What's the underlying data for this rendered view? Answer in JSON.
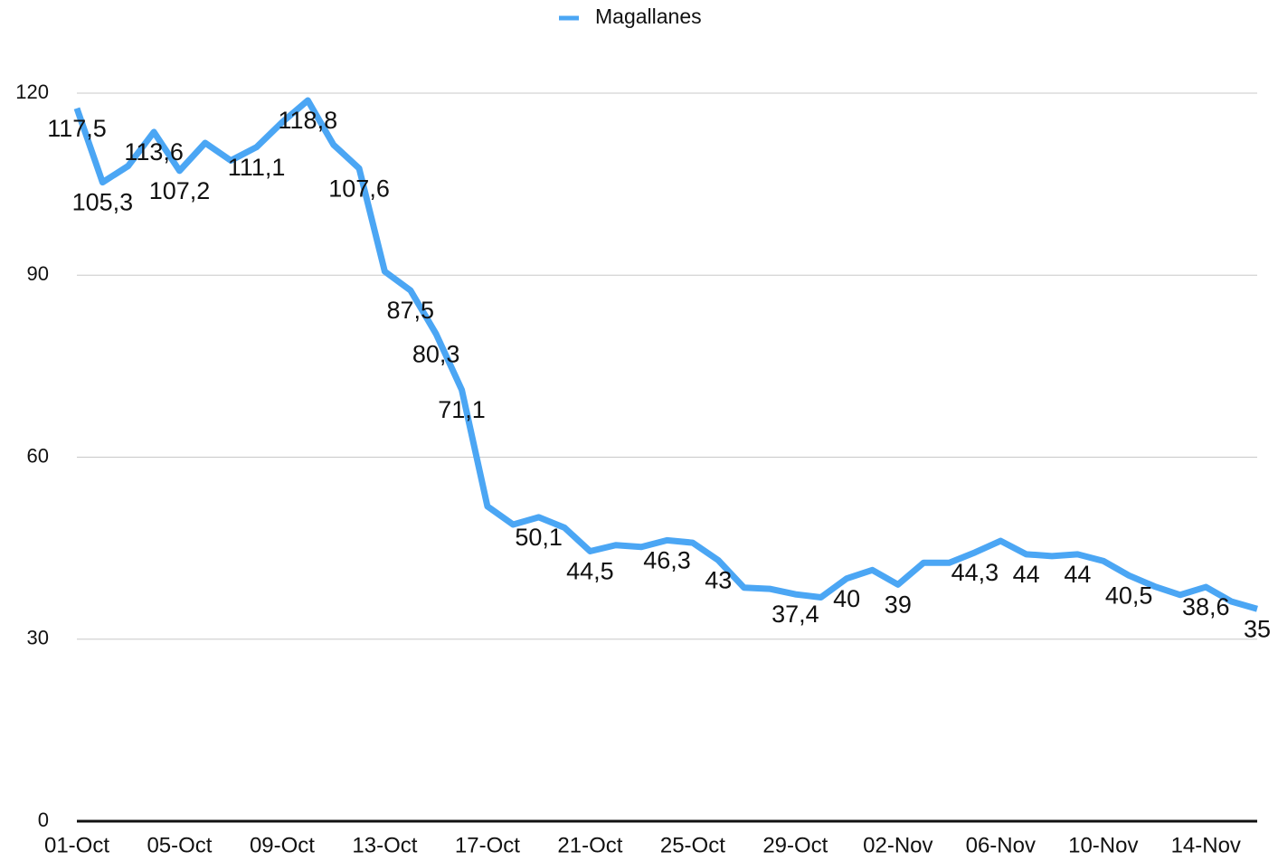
{
  "chart_data": {
    "type": "line",
    "categories": [
      "01-Oct",
      null,
      null,
      null,
      "05-Oct",
      null,
      null,
      null,
      "09-Oct",
      null,
      null,
      null,
      "13-Oct",
      null,
      null,
      null,
      "17-Oct",
      null,
      null,
      null,
      "21-Oct",
      null,
      null,
      null,
      "25-Oct",
      null,
      null,
      null,
      "29-Oct",
      null,
      null,
      null,
      "02-Nov",
      null,
      null,
      null,
      "06-Nov",
      null,
      null,
      null,
      "10-Nov",
      null,
      null,
      null,
      "14-Nov",
      null,
      null
    ],
    "series": [
      {
        "name": "Magallanes",
        "color": "#4ba6f4",
        "values": [
          117.5,
          105.3,
          108.0,
          113.6,
          107.2,
          111.8,
          108.9,
          111.1,
          115.2,
          118.8,
          111.5,
          107.6,
          90.6,
          87.5,
          80.3,
          71.1,
          51.9,
          48.9,
          50.1,
          48.4,
          44.5,
          45.5,
          45.2,
          46.3,
          45.9,
          43,
          38.5,
          38.3,
          37.4,
          36.9,
          40,
          41.4,
          39,
          42.6,
          42.6,
          44.3,
          46.2,
          44,
          43.7,
          44,
          42.9,
          40.5,
          38.7,
          37.3,
          38.6,
          36.2,
          35
        ],
        "value_labels": [
          "117,5",
          "105,3",
          null,
          "113,6",
          "107,2",
          null,
          null,
          "111,1",
          null,
          "118,8",
          null,
          "107,6",
          null,
          "87,5",
          "80,3",
          "71,1",
          null,
          null,
          "50,1",
          null,
          "44,5",
          null,
          null,
          "46,3",
          null,
          "43",
          null,
          null,
          "37,4",
          null,
          "40",
          null,
          "39",
          null,
          null,
          "44,3",
          null,
          "44",
          null,
          "44",
          null,
          "40,5",
          null,
          null,
          "38,6",
          null,
          "35"
        ]
      }
    ],
    "ylim": [
      0,
      120
    ],
    "yticks": [
      0,
      30,
      60,
      90,
      120
    ],
    "grid": true,
    "legend": "top"
  }
}
